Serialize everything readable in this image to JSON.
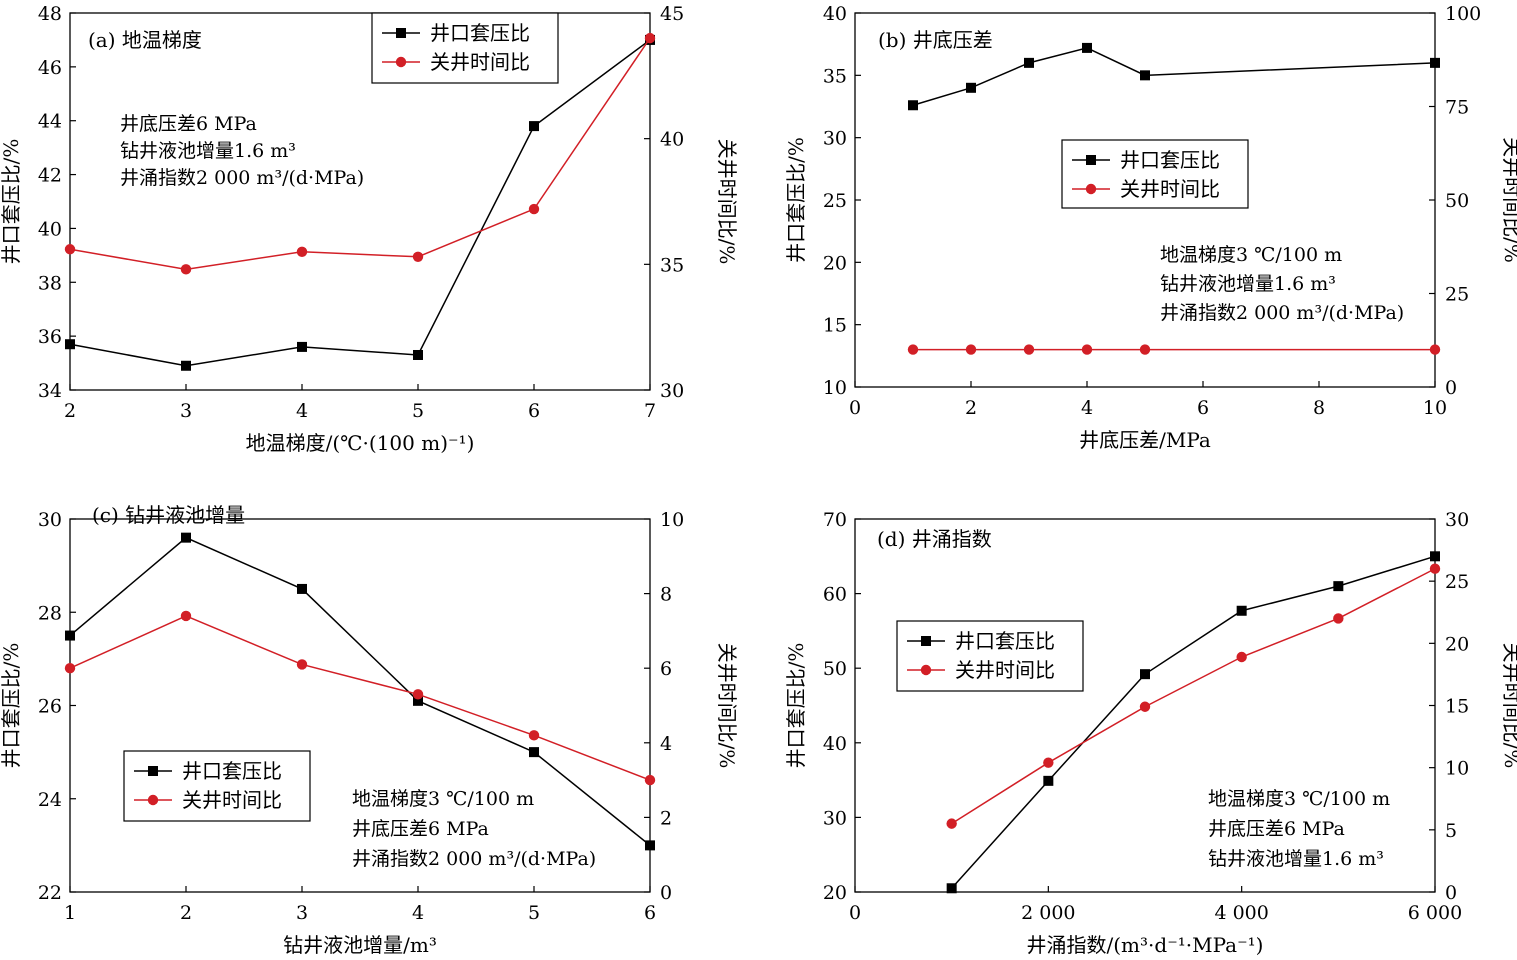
{
  "legend_labels": {
    "casing": "井口套压比",
    "shutin": "关井时间比"
  },
  "colors": {
    "casing": "#000000",
    "shutin": "#d21f26"
  },
  "chart_data": [
    {
      "id": "a",
      "type": "line",
      "title": "(a) 地温梯度",
      "xlabel": "地温梯度/(℃·(100 m)⁻¹)",
      "ylabel": "井口套压比/%",
      "y2label": "关井时间比/%",
      "xlim": [
        2,
        7
      ],
      "ylim": [
        34,
        48
      ],
      "y2lim": [
        30,
        45
      ],
      "xticks": [
        "2",
        "3",
        "4",
        "5",
        "6",
        "7"
      ],
      "yticks": [
        "34",
        "36",
        "38",
        "40",
        "42",
        "44",
        "46",
        "48"
      ],
      "y2ticks": [
        "30",
        "35",
        "40",
        "45"
      ],
      "notes": [
        "井底压差6 MPa",
        "钻井液池增量1.6 m³",
        "井涌指数2 000 m³/(d·MPa)"
      ],
      "legend_position": "top-center",
      "series": [
        {
          "name": "井口套压比",
          "axis": "left",
          "marker": "square",
          "x": [
            2,
            3,
            4,
            5,
            6,
            7
          ],
          "y": [
            35.7,
            34.9,
            35.6,
            35.3,
            43.8,
            47.0
          ]
        },
        {
          "name": "关井时间比",
          "axis": "right",
          "marker": "circle",
          "x": [
            2,
            3,
            4,
            5,
            6,
            7
          ],
          "y": [
            35.6,
            34.8,
            35.5,
            35.3,
            37.2,
            44.0
          ]
        }
      ]
    },
    {
      "id": "b",
      "type": "line",
      "title": "(b) 井底压差",
      "xlabel": "井底压差/MPa",
      "ylabel": "井口套压比/%",
      "y2label": "关井时间比/%",
      "xlim": [
        0,
        10
      ],
      "ylim": [
        10,
        40
      ],
      "y2lim": [
        0,
        100
      ],
      "xticks": [
        "0",
        "2",
        "4",
        "6",
        "8",
        "10"
      ],
      "yticks": [
        "10",
        "15",
        "20",
        "25",
        "30",
        "35",
        "40"
      ],
      "y2ticks": [
        "0",
        "25",
        "50",
        "75",
        "100"
      ],
      "notes": [
        "地温梯度3 ℃/100 m",
        "钻井液池增量1.6 m³",
        "井涌指数2 000 m³/(d·MPa)"
      ],
      "legend_position": "center-left",
      "series": [
        {
          "name": "井口套压比",
          "axis": "left",
          "marker": "square",
          "x": [
            1,
            2,
            3,
            4,
            5,
            10
          ],
          "y": [
            32.6,
            34.0,
            36.0,
            37.2,
            35.0,
            36.0
          ]
        },
        {
          "name": "关井时间比",
          "axis": "right",
          "marker": "circle",
          "x": [
            1,
            2,
            3,
            4,
            5,
            10
          ],
          "y": [
            10,
            10,
            10,
            10,
            10,
            10
          ]
        }
      ]
    },
    {
      "id": "c",
      "type": "line",
      "title": "(c) 钻井液池增量",
      "xlabel": "钻井液池增量/m³",
      "ylabel": "井口套压比/%",
      "y2label": "关井时间比/%",
      "xlim": [
        1,
        6
      ],
      "ylim": [
        22,
        30
      ],
      "y2lim": [
        0,
        10
      ],
      "xticks": [
        "1",
        "2",
        "3",
        "4",
        "5",
        "6"
      ],
      "yticks": [
        "22",
        "24",
        "26",
        "28",
        "30"
      ],
      "y2ticks": [
        "0",
        "2",
        "4",
        "6",
        "8",
        "10"
      ],
      "notes": [
        "地温梯度3 ℃/100 m",
        "井底压差6 MPa",
        "井涌指数2 000 m³/(d·MPa)"
      ],
      "legend_position": "bottom-left",
      "series": [
        {
          "name": "井口套压比",
          "axis": "left",
          "marker": "square",
          "x": [
            1,
            2,
            3,
            4,
            5,
            6
          ],
          "y": [
            27.5,
            29.6,
            28.5,
            26.1,
            25.0,
            23.0
          ]
        },
        {
          "name": "关井时间比",
          "axis": "right",
          "marker": "circle",
          "x": [
            1,
            2,
            3,
            4,
            5,
            6
          ],
          "y": [
            6.0,
            7.4,
            6.1,
            5.3,
            4.2,
            3.0
          ]
        }
      ]
    },
    {
      "id": "d",
      "type": "line",
      "title": "(d) 井涌指数",
      "xlabel": "井涌指数/(m³·d⁻¹·MPa⁻¹)",
      "ylabel": "井口套压比/%",
      "y2label": "关井时间比/%",
      "xlim": [
        0,
        6000
      ],
      "ylim": [
        20,
        70
      ],
      "y2lim": [
        0,
        30
      ],
      "xticks": [
        "0",
        "2 000",
        "4 000",
        "6 000"
      ],
      "yticks": [
        "20",
        "30",
        "40",
        "50",
        "60",
        "70"
      ],
      "y2ticks": [
        "0",
        "5",
        "10",
        "15",
        "20",
        "25",
        "30"
      ],
      "notes": [
        "地温梯度3 ℃/100 m",
        "井底压差6 MPa",
        "钻井液池增量1.6 m³"
      ],
      "legend_position": "top-left",
      "series": [
        {
          "name": "井口套压比",
          "axis": "left",
          "marker": "square",
          "x": [
            1000,
            2000,
            3000,
            4000,
            5000,
            6000
          ],
          "y": [
            20.5,
            34.9,
            49.2,
            57.7,
            61.0,
            65.0
          ]
        },
        {
          "name": "关井时间比",
          "axis": "right",
          "marker": "circle",
          "x": [
            1000,
            2000,
            3000,
            4000,
            5000,
            6000
          ],
          "y": [
            5.5,
            10.4,
            14.9,
            18.9,
            22.0,
            26.0
          ]
        }
      ]
    }
  ]
}
